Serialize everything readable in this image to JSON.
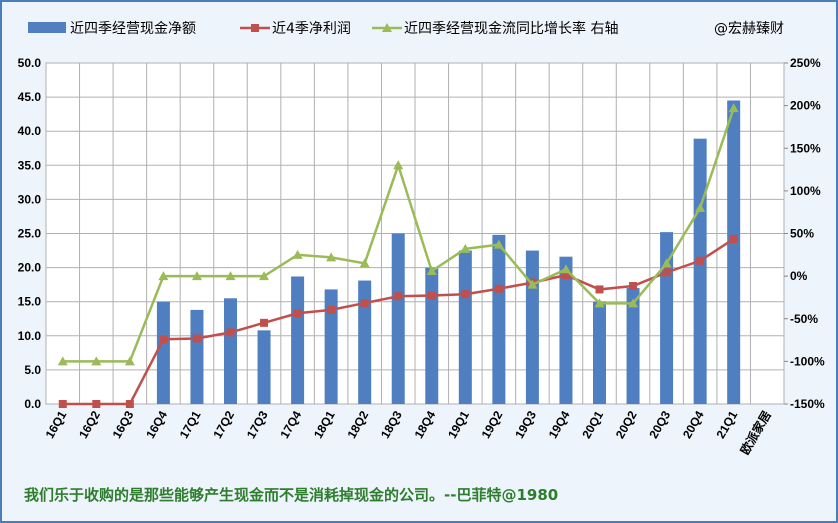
{
  "chart_data": {
    "type": "bar",
    "categories": [
      "16Q1",
      "16Q2",
      "16Q3",
      "16Q4",
      "17Q1",
      "17Q2",
      "17Q3",
      "17Q4",
      "18Q1",
      "18Q2",
      "18Q3",
      "18Q4",
      "19Q1",
      "19Q2",
      "19Q3",
      "19Q4",
      "20Q1",
      "20Q2",
      "20Q3",
      "20Q4",
      "21Q1",
      "欧派家居"
    ],
    "series": [
      {
        "name": "近四季经营现金净额",
        "kind": "bar",
        "axis": "left",
        "color": "#4f7fc0",
        "values": [
          null,
          null,
          null,
          15.0,
          13.8,
          15.5,
          10.8,
          18.7,
          16.8,
          18.1,
          25.0,
          20.0,
          22.5,
          24.8,
          22.5,
          21.6,
          15.0,
          17.0,
          25.2,
          38.9,
          44.5,
          null
        ]
      },
      {
        "name": "近4季净利润",
        "kind": "line",
        "axis": "left",
        "color": "#c0504d",
        "values": [
          0.0,
          0.0,
          0.0,
          9.5,
          9.6,
          10.5,
          11.9,
          13.3,
          13.8,
          14.8,
          15.8,
          15.9,
          16.1,
          16.9,
          17.8,
          18.9,
          16.8,
          17.3,
          19.3,
          21.0,
          24.2,
          null
        ]
      },
      {
        "name": "近四季经营现金流同比增长率 右轴",
        "kind": "line",
        "axis": "right",
        "color": "#9bbb59",
        "values": [
          -100,
          -100,
          -100,
          0,
          0,
          0,
          0,
          25,
          22,
          15,
          130,
          6,
          32,
          37,
          -10,
          8,
          -32,
          -32,
          15,
          80,
          197,
          null
        ]
      }
    ],
    "watermark": "@宏赫臻财",
    "ylim": [
      0,
      50
    ],
    "yticks": [
      "0.0",
      "5.0",
      "10.0",
      "15.0",
      "20.0",
      "25.0",
      "30.0",
      "35.0",
      "40.0",
      "45.0",
      "50.0"
    ],
    "y2lim": [
      -150,
      250
    ],
    "y2ticks": [
      "-150%",
      "-100%",
      "-50%",
      "0%",
      "50%",
      "100%",
      "150%",
      "200%",
      "250%"
    ],
    "legend": "top",
    "grid": true,
    "footer": "我们乐于收购的是那些能够产生现金而不是消耗掉现金的公司。--巴菲特@1980"
  }
}
